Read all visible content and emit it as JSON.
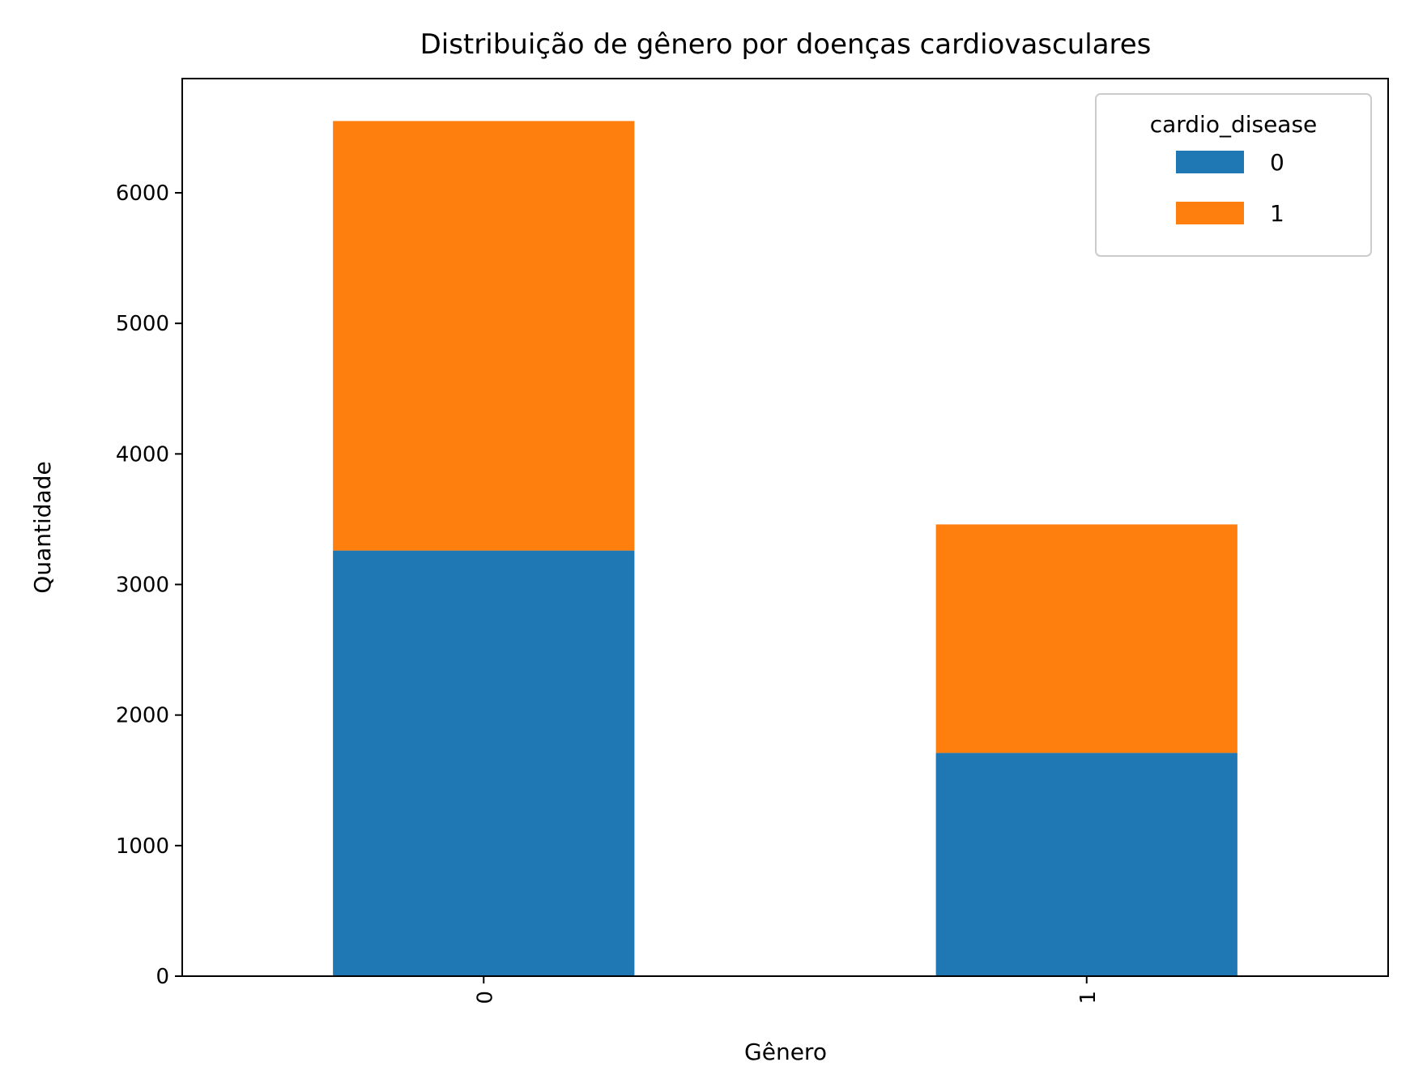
{
  "chart_data": {
    "type": "bar",
    "stacked": true,
    "title": "Distribuição de gênero por doenças cardiovasculares",
    "xlabel": "Gênero",
    "ylabel": "Quantidade",
    "categories": [
      "0",
      "1"
    ],
    "series": [
      {
        "name": "0",
        "values": [
          3260,
          1710
        ],
        "color": "#1f77b4"
      },
      {
        "name": "1",
        "values": [
          3290,
          1750
        ],
        "color": "#ff7f0e"
      }
    ],
    "yticks": [
      0,
      1000,
      2000,
      3000,
      4000,
      5000,
      6000
    ],
    "ylim": [
      0,
      6875
    ],
    "grid": false,
    "legend": {
      "title": "cardio_disease",
      "position": "top-right"
    }
  }
}
